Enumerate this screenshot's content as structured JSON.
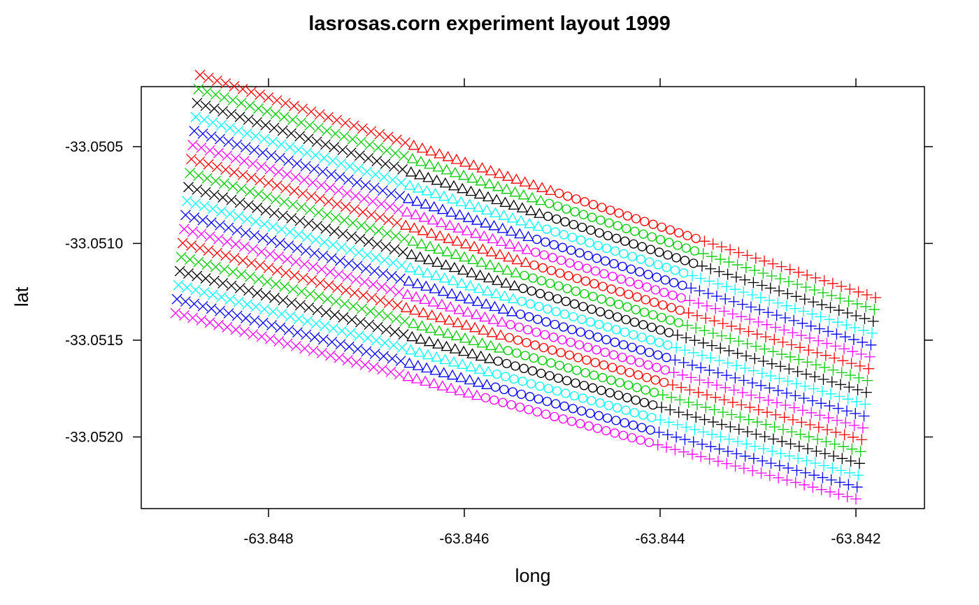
{
  "chart_data": {
    "type": "scatter",
    "title": "lasrosas.corn experiment layout 1999",
    "xlabel": "long",
    "ylabel": "lat",
    "xlim": [
      -63.8493,
      -63.8413
    ],
    "ylim": [
      -33.05237,
      -33.05019
    ],
    "x_ticks": [
      -63.848,
      -63.846,
      -63.844,
      -63.842
    ],
    "x_tick_labels": [
      "-63.848",
      "-63.846",
      "-63.844",
      "-63.842"
    ],
    "y_ticks": [
      -33.0505,
      -33.051,
      -33.0515,
      -33.052
    ],
    "y_tick_labels": [
      "-33.0505",
      "-33.0510",
      "-33.0515",
      "-33.0520"
    ],
    "grid": false,
    "colors": [
      "#FF0000",
      "#00CC00",
      "#000000",
      "#00FFFF",
      "#0000FF",
      "#FF00FF"
    ],
    "topo_markers": [
      "x",
      "triangle",
      "circle",
      "plus"
    ],
    "rows": {
      "count": 18,
      "start_long": -63.8487,
      "start_lat_first": -33.05013,
      "start_lat_last": -33.05136,
      "end_long_first": -63.8418,
      "end_long_last": -63.842,
      "end_lat_first": -33.05128,
      "end_lat_last": -33.05232,
      "long_step": -6.25e-06,
      "points_per_row": 80
    },
    "topo_zones": [
      {
        "marker": "x",
        "long_from_top": -63.8487,
        "long_to_top": -63.8466,
        "long_from_bottom": -63.8489,
        "long_to_bottom": -63.8466
      },
      {
        "marker": "triangle",
        "long_from_top": -63.8466,
        "long_to_top": -63.8451,
        "long_from_bottom": -63.8466,
        "long_to_bottom": -63.8458
      },
      {
        "marker": "circle",
        "long_from_top": -63.8451,
        "long_to_top": -63.8436,
        "long_from_bottom": -63.8458,
        "long_to_bottom": -63.8441
      },
      {
        "marker": "plus",
        "long_from_top": -63.8436,
        "long_to_top": -63.8418,
        "long_from_bottom": -63.8441,
        "long_to_bottom": -63.842
      }
    ]
  }
}
